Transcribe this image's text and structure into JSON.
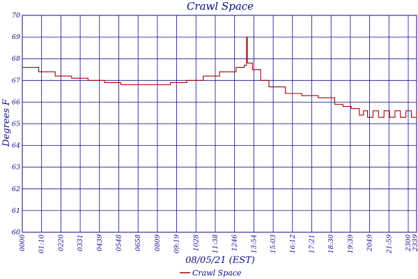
{
  "chart_data": {
    "type": "line",
    "title": "Crawl Space",
    "xlabel": "08/05/21 (EST)",
    "ylabel": "Degrees F",
    "ylim": [
      60,
      70
    ],
    "yticks": [
      60,
      61,
      62,
      63,
      64,
      65,
      66,
      67,
      68,
      69,
      70
    ],
    "grid": true,
    "legend_position": "bottom-center",
    "x_tick_labels": [
      "0000",
      "01:10",
      "0220",
      "0331",
      "0439",
      "0548",
      "0658",
      "0809",
      "09:19",
      "1028",
      "11:38",
      "1246",
      "13:54",
      "15:03",
      "16:12",
      "17:21",
      "18:30",
      "19:39",
      "2049",
      "21:59",
      "2300",
      "2339"
    ],
    "series": [
      {
        "name": "Crawl Space",
        "color": "#a00000",
        "x_minutes": [
          0,
          60,
          120,
          180,
          240,
          300,
          360,
          420,
          480,
          540,
          600,
          660,
          720,
          780,
          810,
          818,
          822,
          840,
          870,
          900,
          960,
          1020,
          1080,
          1140,
          1170,
          1200,
          1230,
          1245,
          1260,
          1280,
          1300,
          1320,
          1340,
          1360,
          1380,
          1400,
          1420,
          1439
        ],
        "values": [
          67.6,
          67.4,
          67.2,
          67.1,
          67.0,
          66.9,
          66.8,
          66.8,
          66.8,
          66.9,
          67.0,
          67.2,
          67.4,
          67.6,
          67.7,
          69.0,
          67.8,
          67.5,
          67.0,
          66.7,
          66.4,
          66.3,
          66.2,
          65.9,
          65.8,
          65.7,
          65.4,
          65.6,
          65.3,
          65.6,
          65.3,
          65.6,
          65.3,
          65.6,
          65.3,
          65.6,
          65.3,
          65.6
        ]
      }
    ]
  },
  "legend": {
    "label": "Crawl Space"
  }
}
